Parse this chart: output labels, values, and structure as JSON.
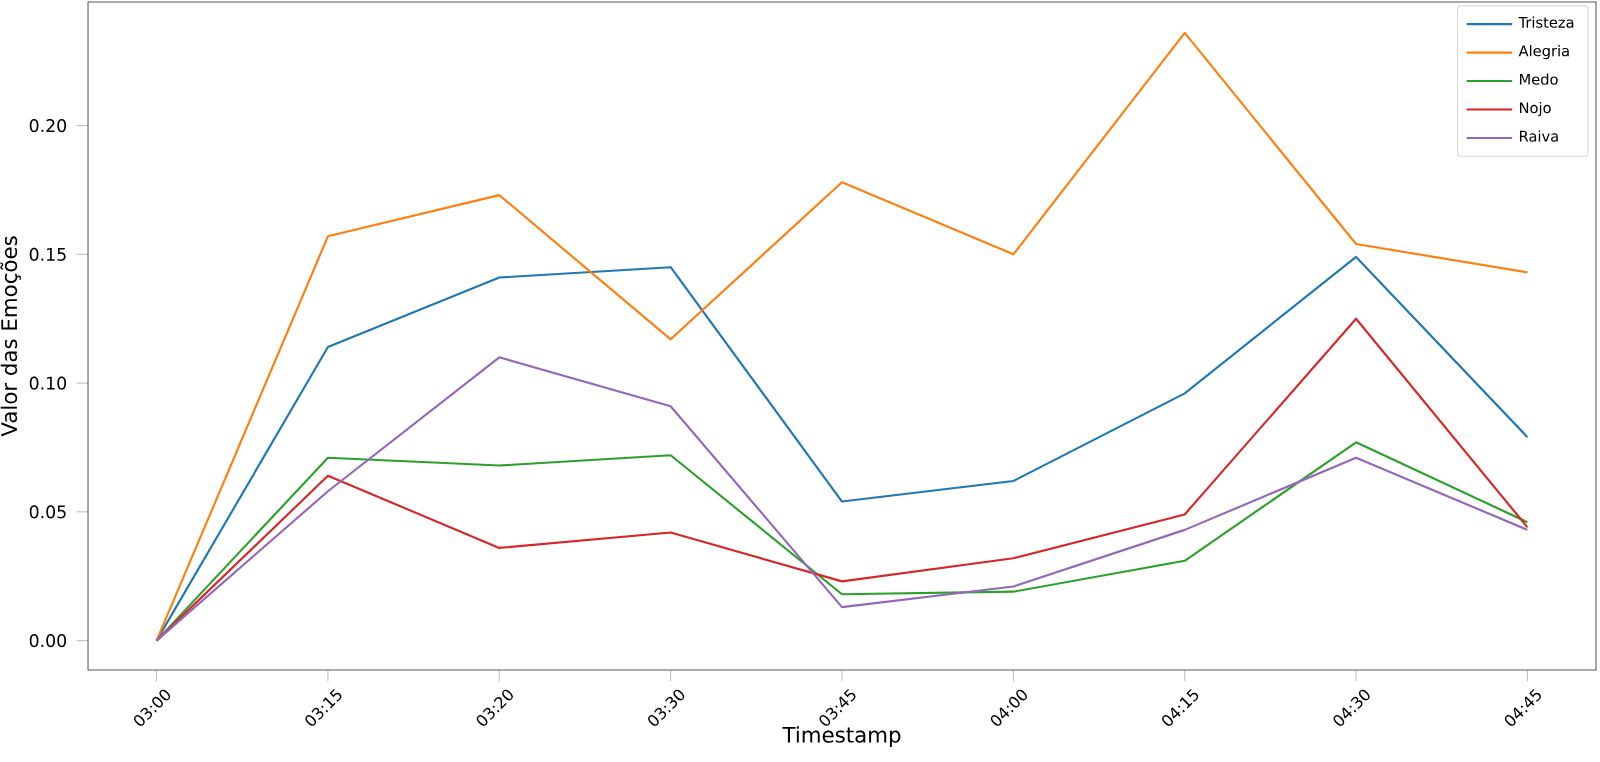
{
  "chart_data": {
    "type": "line",
    "xlabel": "Timestamp",
    "ylabel": "Valor das Emoções",
    "categories": [
      "03:00",
      "03:15",
      "03:20",
      "03:30",
      "03:45",
      "04:00",
      "04:15",
      "04:30",
      "04:45"
    ],
    "series": [
      {
        "name": "Tristeza",
        "color": "#1f77b4",
        "values": [
          0,
          0.114,
          0.141,
          0.145,
          0.054,
          0.062,
          0.096,
          0.149,
          0.079
        ]
      },
      {
        "name": "Alegria",
        "color": "#ff7f0e",
        "values": [
          0,
          0.157,
          0.173,
          0.117,
          0.178,
          0.15,
          0.236,
          0.154,
          0.143
        ]
      },
      {
        "name": "Medo",
        "color": "#2ca02c",
        "values": [
          0,
          0.071,
          0.068,
          0.072,
          0.018,
          0.019,
          0.031,
          0.077,
          0.046
        ]
      },
      {
        "name": "Nojo",
        "color": "#d62728",
        "values": [
          0,
          0.064,
          0.036,
          0.042,
          0.023,
          0.032,
          0.049,
          0.125,
          0.044
        ]
      },
      {
        "name": "Raiva",
        "color": "#9467bd",
        "values": [
          0,
          0.058,
          0.11,
          0.091,
          0.013,
          0.021,
          0.043,
          0.071,
          0.043
        ]
      }
    ],
    "ylim": [
      -0.0114,
      0.248
    ],
    "yticks": [
      {
        "value": 0,
        "label": "0.00"
      },
      {
        "value": 0.05,
        "label": "0.05"
      },
      {
        "value": 0.1,
        "label": "0.10"
      },
      {
        "value": 0.15,
        "label": "0.15"
      },
      {
        "value": 0.2,
        "label": "0.20"
      }
    ],
    "legend": "top right",
    "grid": false,
    "marker": "none",
    "line_style": "solid"
  }
}
